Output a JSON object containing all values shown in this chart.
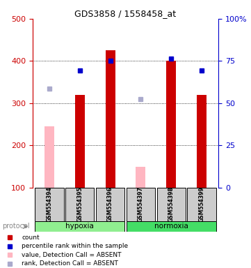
{
  "title": "GDS3858 / 1558458_at",
  "samples": [
    "GSM554394",
    "GSM554395",
    "GSM554396",
    "GSM554397",
    "GSM554398",
    "GSM554399"
  ],
  "red_bars": [
    null,
    320,
    425,
    null,
    400,
    320
  ],
  "pink_bars": [
    245,
    null,
    null,
    150,
    null,
    null
  ],
  "blue_squares": [
    335,
    378,
    400,
    310,
    405,
    378
  ],
  "blue_square_absent": [
    true,
    false,
    false,
    true,
    false,
    false
  ],
  "ylim_left": [
    100,
    500
  ],
  "ylim_right": [
    0,
    100
  ],
  "yticks_left": [
    100,
    200,
    300,
    400,
    500
  ],
  "yticks_right": [
    0,
    25,
    50,
    75,
    100
  ],
  "groups": [
    {
      "label": "hypoxia",
      "samples": [
        0,
        1,
        2
      ],
      "color": "#90EE90"
    },
    {
      "label": "normoxia",
      "samples": [
        3,
        4,
        5
      ],
      "color": "#44DD66"
    }
  ],
  "protocol_label": "protocol",
  "left_axis_color": "#CC0000",
  "right_axis_color": "#0000CC",
  "red_bar_color": "#CC0000",
  "pink_bar_color": "#FFB6C1",
  "blue_square_color": "#0000CC",
  "blue_square_absent_color": "#AAAACC",
  "sample_box_color": "#CCCCCC",
  "legend_items": [
    {
      "color": "#CC0000",
      "label": "count"
    },
    {
      "color": "#0000CC",
      "label": "percentile rank within the sample"
    },
    {
      "color": "#FFB6C1",
      "label": "value, Detection Call = ABSENT"
    },
    {
      "color": "#AAAACC",
      "label": "rank, Detection Call = ABSENT"
    }
  ]
}
